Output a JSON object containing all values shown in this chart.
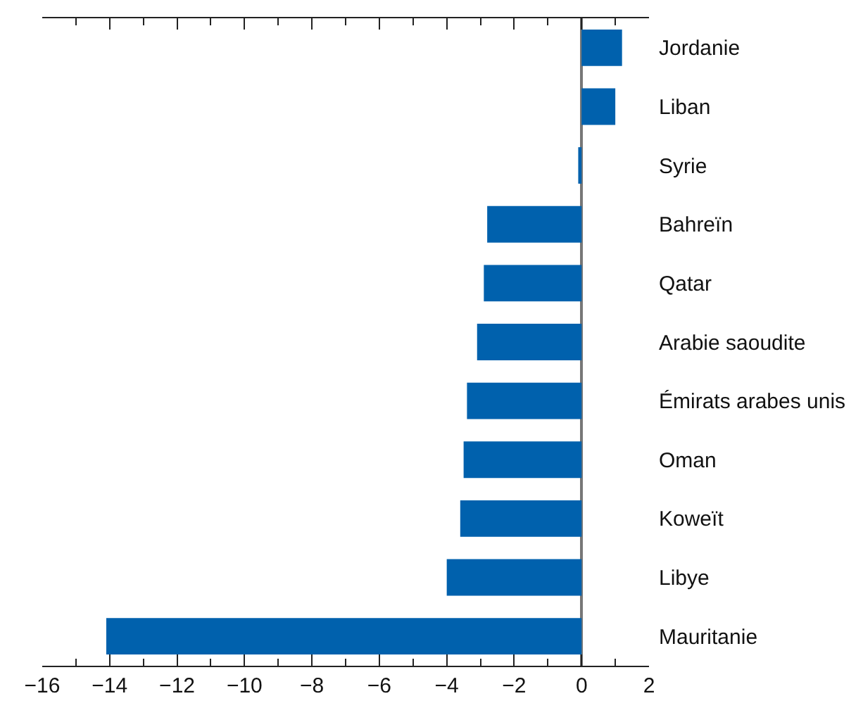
{
  "chart_data": {
    "type": "bar",
    "orientation": "horizontal",
    "categories": [
      "Jordanie",
      "Liban",
      "Syrie",
      "Bahreïn",
      "Qatar",
      "Arabie saoudite",
      "Émirats arabes unis",
      "Oman",
      "Koweït",
      "Libye",
      "Mauritanie"
    ],
    "values": [
      1.2,
      1.0,
      -0.1,
      -2.8,
      -2.9,
      -3.1,
      -3.4,
      -3.5,
      -3.6,
      -4.0,
      -14.1
    ],
    "color": "#0061ad",
    "xlim": [
      -16,
      2
    ],
    "xticks": [
      {
        "value": -16,
        "label": "−16"
      },
      {
        "value": -15,
        "label": null
      },
      {
        "value": -14,
        "label": "−14"
      },
      {
        "value": -13,
        "label": null
      },
      {
        "value": -12,
        "label": "−12"
      },
      {
        "value": -11,
        "label": null
      },
      {
        "value": -10,
        "label": "−10"
      },
      {
        "value": -9,
        "label": null
      },
      {
        "value": -8,
        "label": "−8"
      },
      {
        "value": -7,
        "label": null
      },
      {
        "value": -6,
        "label": "−6"
      },
      {
        "value": -5,
        "label": null
      },
      {
        "value": -4,
        "label": "−4"
      },
      {
        "value": -3,
        "label": null
      },
      {
        "value": -2,
        "label": "−2"
      },
      {
        "value": -1,
        "label": null
      },
      {
        "value": 0,
        "label": "0"
      },
      {
        "value": 1,
        "label": null
      },
      {
        "value": 2,
        "label": "2"
      }
    ]
  }
}
